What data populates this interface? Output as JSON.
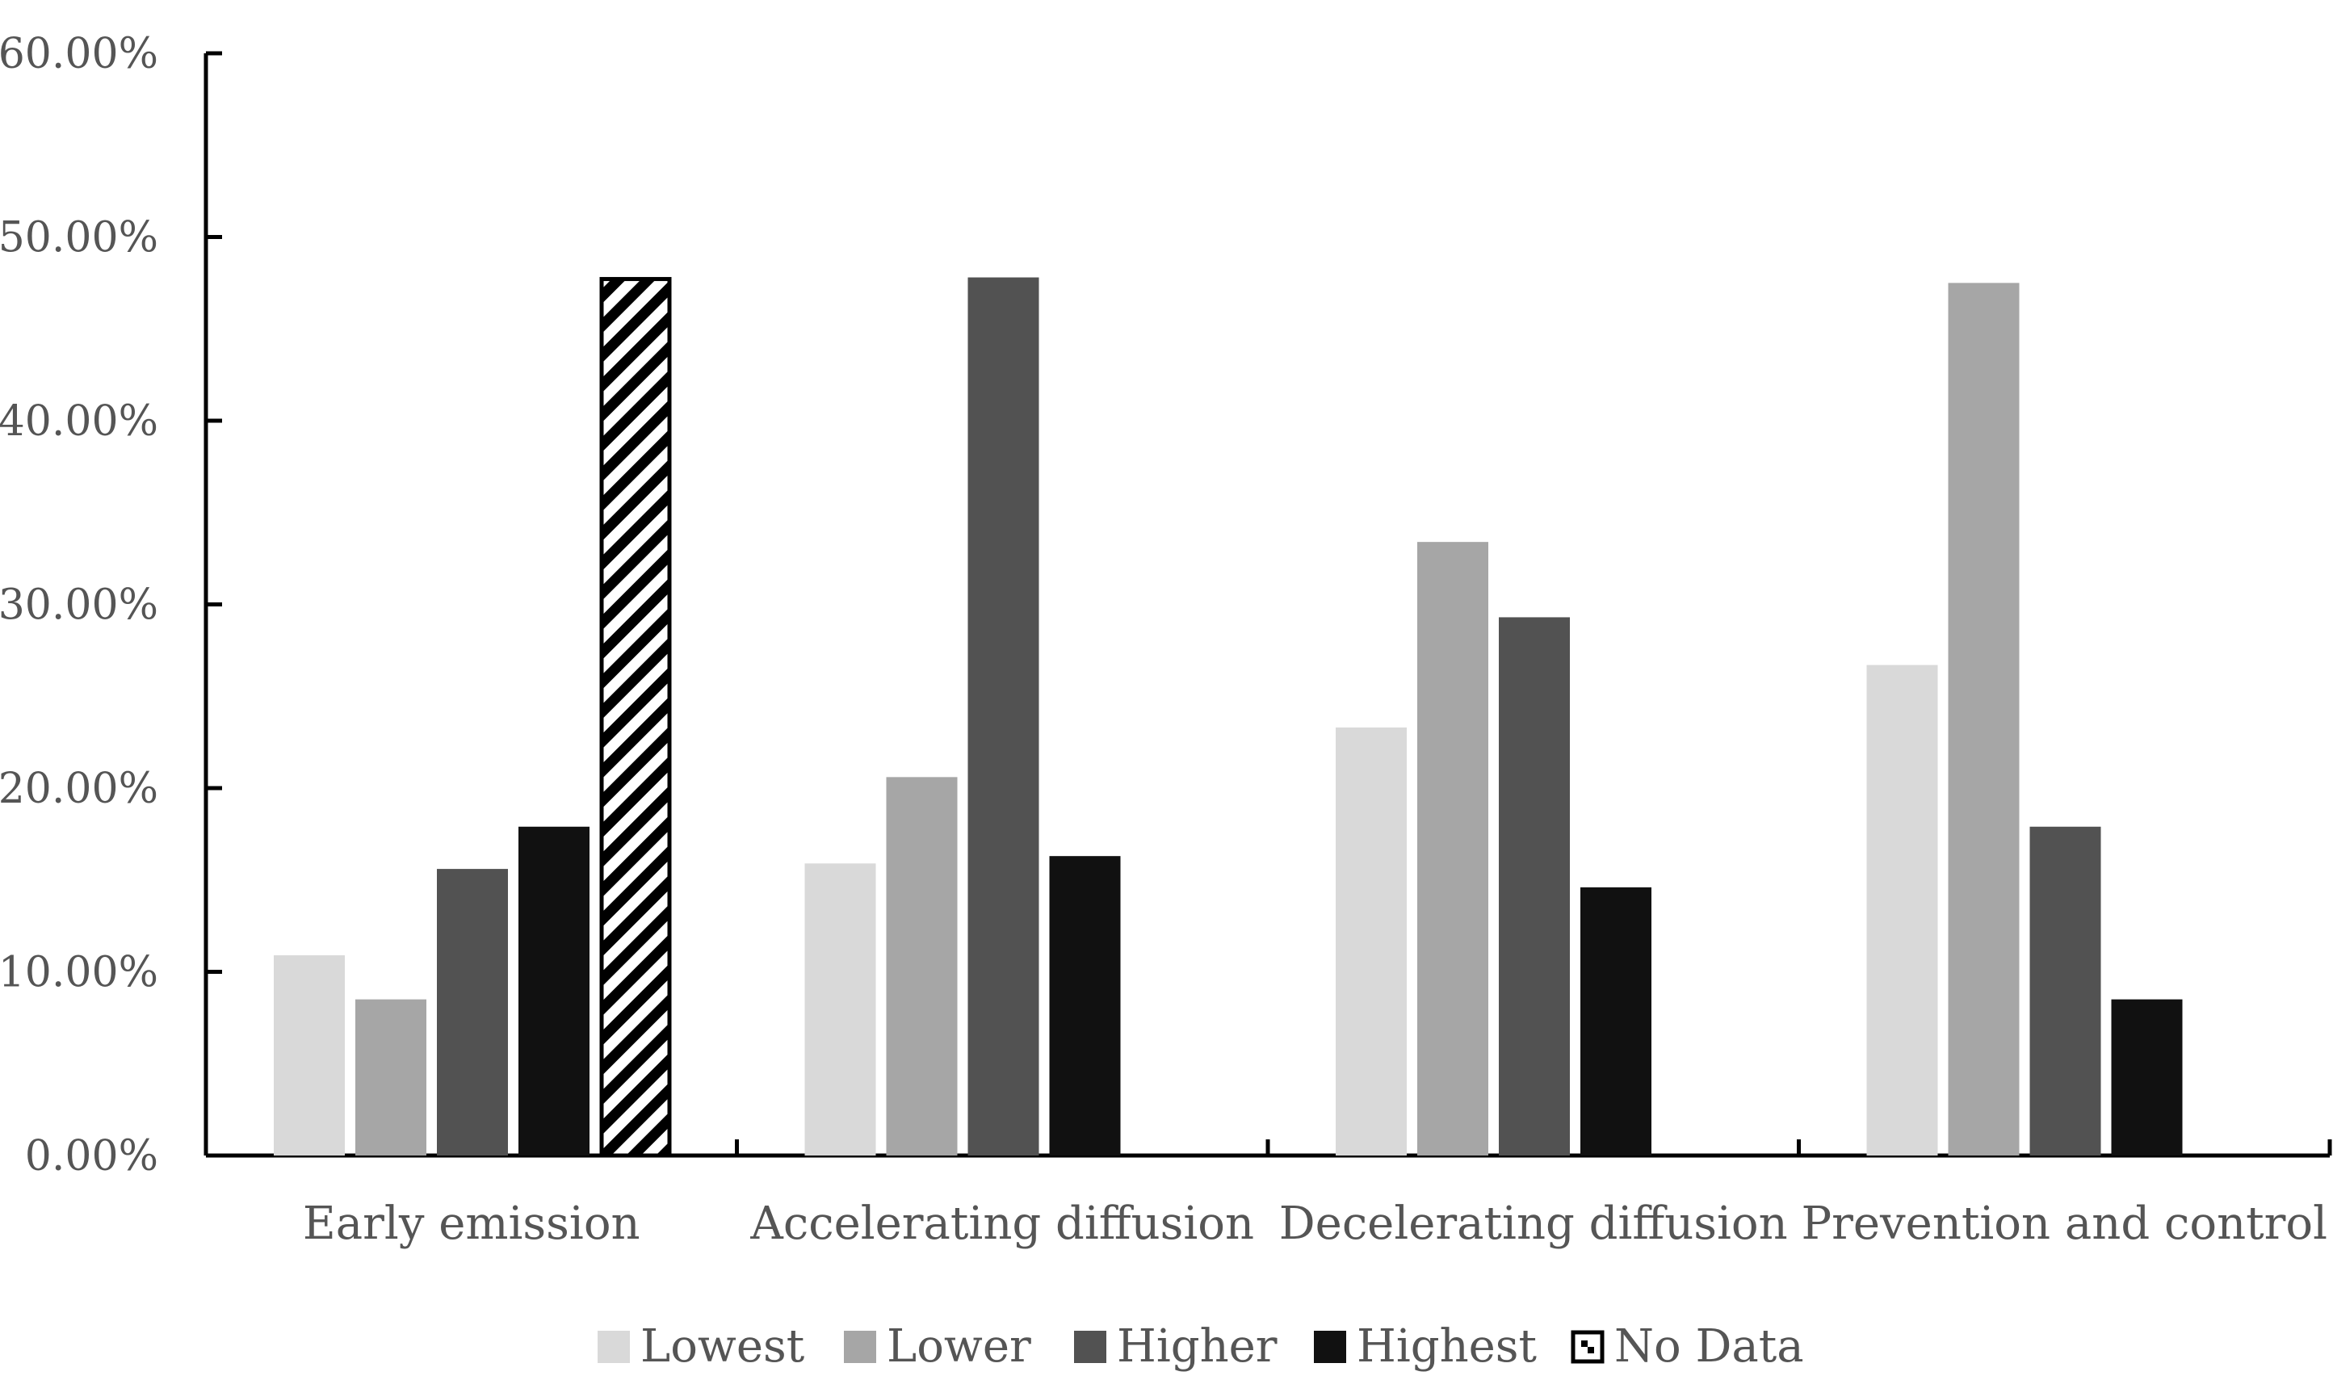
{
  "chart_data": {
    "type": "bar",
    "title": "",
    "xlabel": "",
    "ylabel": "",
    "ylim": [
      0,
      0.6
    ],
    "yticks": [
      0,
      0.1,
      0.2,
      0.3,
      0.4,
      0.5,
      0.6
    ],
    "ytick_labels": [
      "0.00%",
      "10.00%",
      "20.00%",
      "30.00%",
      "40.00%",
      "50.00%",
      "60.00%"
    ],
    "categories": [
      "Early emission",
      "Accelerating diffusion",
      "Decelerating diffusion",
      "Prevention and control"
    ],
    "series": [
      {
        "name": "Lowest",
        "color": "#d9d9d9",
        "pattern": "solid",
        "values": [
          0.109,
          0.159,
          0.233,
          0.267
        ]
      },
      {
        "name": "Lower",
        "color": "#a6a6a6",
        "pattern": "solid",
        "values": [
          0.085,
          0.206,
          0.334,
          0.475
        ]
      },
      {
        "name": "Higher",
        "color": "#525252",
        "pattern": "solid",
        "values": [
          0.156,
          0.478,
          0.293,
          0.179
        ]
      },
      {
        "name": "Highest",
        "color": "#111111",
        "pattern": "solid",
        "values": [
          0.179,
          0.163,
          0.146,
          0.085
        ]
      },
      {
        "name": "No Data",
        "color": "#000000",
        "pattern": "hatch",
        "values": [
          0.478,
          null,
          null,
          null
        ]
      }
    ],
    "legend_position": "bottom",
    "grid": false
  }
}
